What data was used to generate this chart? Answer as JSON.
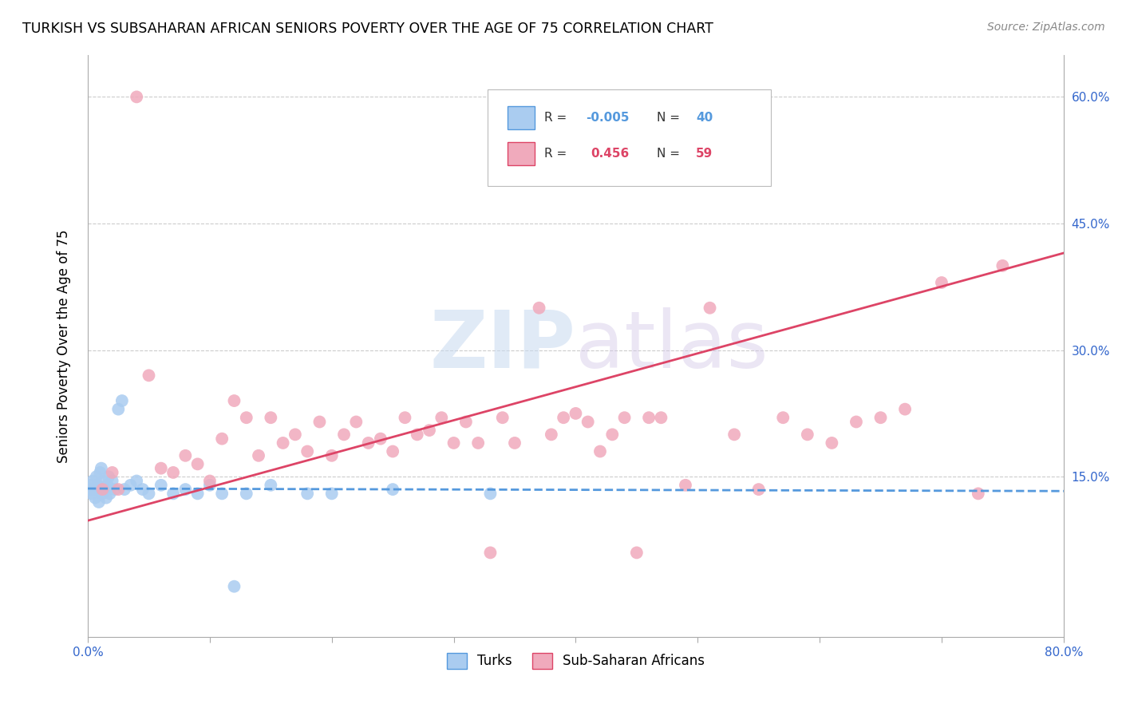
{
  "title": "TURKISH VS SUBSAHARAN AFRICAN SENIORS POVERTY OVER THE AGE OF 75 CORRELATION CHART",
  "source": "Source: ZipAtlas.com",
  "ylabel": "Seniors Poverty Over the Age of 75",
  "xlim": [
    0.0,
    0.8
  ],
  "ylim": [
    -0.04,
    0.65
  ],
  "turks_R": "-0.005",
  "turks_N": "40",
  "subsaharan_R": "0.456",
  "subsaharan_N": "59",
  "turks_color": "#aaccf0",
  "turks_line_color": "#5599dd",
  "subsaharan_color": "#f0aabc",
  "subsaharan_line_color": "#dd4466",
  "grid_color": "#cccccc",
  "turks_x": [
    0.001,
    0.002,
    0.003,
    0.004,
    0.005,
    0.006,
    0.007,
    0.008,
    0.009,
    0.01,
    0.011,
    0.012,
    0.013,
    0.014,
    0.015,
    0.016,
    0.017,
    0.018,
    0.02,
    0.022,
    0.025,
    0.028,
    0.03,
    0.035,
    0.04,
    0.045,
    0.05,
    0.06,
    0.07,
    0.08,
    0.09,
    0.1,
    0.11,
    0.12,
    0.13,
    0.15,
    0.18,
    0.2,
    0.25,
    0.33
  ],
  "turks_y": [
    0.135,
    0.14,
    0.13,
    0.145,
    0.135,
    0.125,
    0.15,
    0.14,
    0.12,
    0.155,
    0.16,
    0.13,
    0.145,
    0.135,
    0.125,
    0.14,
    0.15,
    0.13,
    0.145,
    0.135,
    0.23,
    0.24,
    0.135,
    0.14,
    0.145,
    0.135,
    0.13,
    0.14,
    0.13,
    0.135,
    0.13,
    0.14,
    0.13,
    0.02,
    0.13,
    0.14,
    0.13,
    0.13,
    0.135,
    0.13
  ],
  "subsaharan_x": [
    0.04,
    0.012,
    0.02,
    0.025,
    0.05,
    0.06,
    0.07,
    0.08,
    0.09,
    0.1,
    0.11,
    0.12,
    0.13,
    0.14,
    0.15,
    0.16,
    0.17,
    0.18,
    0.19,
    0.2,
    0.21,
    0.22,
    0.23,
    0.24,
    0.25,
    0.26,
    0.27,
    0.28,
    0.29,
    0.3,
    0.31,
    0.32,
    0.33,
    0.34,
    0.35,
    0.37,
    0.38,
    0.39,
    0.4,
    0.41,
    0.42,
    0.43,
    0.44,
    0.45,
    0.46,
    0.47,
    0.49,
    0.51,
    0.53,
    0.55,
    0.57,
    0.59,
    0.61,
    0.63,
    0.65,
    0.67,
    0.7,
    0.73,
    0.75
  ],
  "subsaharan_y": [
    0.6,
    0.135,
    0.155,
    0.135,
    0.27,
    0.16,
    0.155,
    0.175,
    0.165,
    0.145,
    0.195,
    0.24,
    0.22,
    0.175,
    0.22,
    0.19,
    0.2,
    0.18,
    0.215,
    0.175,
    0.2,
    0.215,
    0.19,
    0.195,
    0.18,
    0.22,
    0.2,
    0.205,
    0.22,
    0.19,
    0.215,
    0.19,
    0.06,
    0.22,
    0.19,
    0.35,
    0.2,
    0.22,
    0.225,
    0.215,
    0.18,
    0.2,
    0.22,
    0.06,
    0.22,
    0.22,
    0.14,
    0.35,
    0.2,
    0.135,
    0.22,
    0.2,
    0.19,
    0.215,
    0.22,
    0.23,
    0.38,
    0.13,
    0.4
  ],
  "turks_line_y0": 0.136,
  "turks_line_y1": 0.133,
  "ssa_line_y0": 0.098,
  "ssa_line_y1": 0.415
}
